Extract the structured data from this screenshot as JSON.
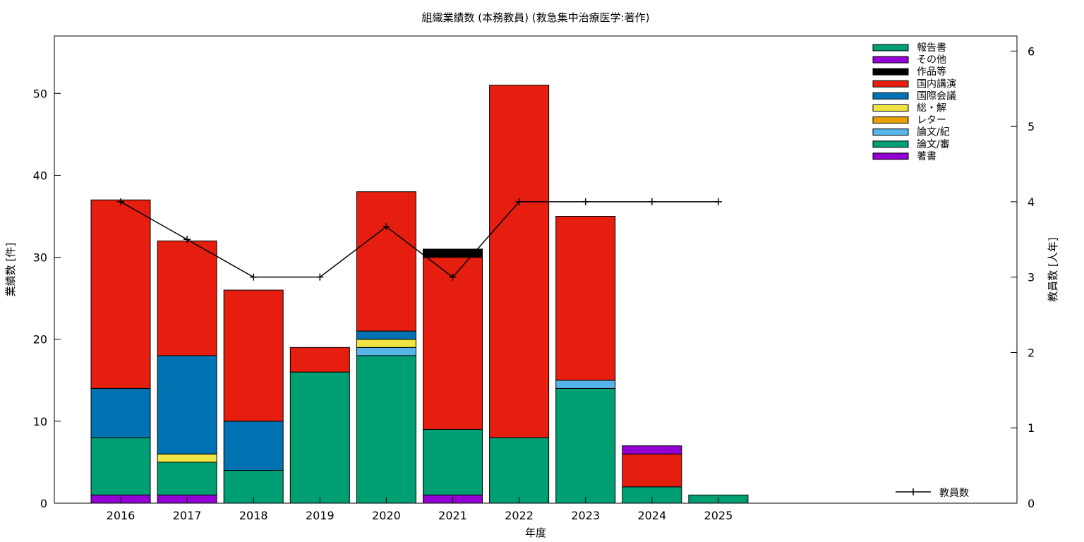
{
  "chart_data": {
    "type": "bar",
    "title": "組織業績数 (本務教員) (救急集中治療医学:著作)",
    "xlabel": "年度",
    "ylabel": "業績数 [件]",
    "y2label": "教員数 [人年]",
    "ylim": [
      0,
      57
    ],
    "y2lim": [
      0,
      6.2
    ],
    "yticks": [
      0,
      10,
      20,
      30,
      40,
      50
    ],
    "y2ticks": [
      0,
      1,
      2,
      3,
      4,
      5,
      6
    ],
    "categories": [
      "2016",
      "2017",
      "2018",
      "2019",
      "2020",
      "2021",
      "2022",
      "2023",
      "2024",
      "2025"
    ],
    "legend_position": "top-right",
    "series": [
      {
        "name": "著書",
        "color": "#9400d3",
        "values": [
          1,
          1,
          0,
          0,
          0,
          1,
          0,
          0,
          0,
          0
        ]
      },
      {
        "name": "論文/審",
        "color": "#009e73",
        "values": [
          7,
          4,
          4,
          16,
          18,
          8,
          8,
          14,
          2,
          1
        ]
      },
      {
        "name": "論文/紀",
        "color": "#56b4e9",
        "values": [
          0,
          0,
          0,
          0,
          1,
          0,
          0,
          1,
          0,
          0
        ]
      },
      {
        "name": "レター",
        "color": "#e69f00",
        "values": [
          0,
          0,
          0,
          0,
          0,
          0,
          0,
          0,
          0,
          0
        ]
      },
      {
        "name": "総・解",
        "color": "#f0e442",
        "values": [
          0,
          1,
          0,
          0,
          1,
          0,
          0,
          0,
          0,
          0
        ]
      },
      {
        "name": "国際会議",
        "color": "#0072b2",
        "values": [
          6,
          12,
          6,
          0,
          1,
          0,
          0,
          0,
          0,
          0
        ]
      },
      {
        "name": "国内講演",
        "color": "#e51e10",
        "values": [
          23,
          14,
          16,
          3,
          17,
          21,
          43,
          20,
          4,
          0
        ]
      },
      {
        "name": "作品等",
        "color": "#000000",
        "values": [
          0,
          0,
          0,
          0,
          0,
          1,
          0,
          0,
          0,
          0
        ]
      },
      {
        "name": "その他",
        "color": "#9400d3",
        "values": [
          0,
          0,
          0,
          0,
          0,
          0,
          0,
          0,
          1,
          0
        ]
      },
      {
        "name": "報告書",
        "color": "#009e73",
        "values": [
          0,
          0,
          0,
          0,
          0,
          0,
          0,
          0,
          0,
          0
        ]
      }
    ],
    "line_series": {
      "name": "教員数",
      "color": "#000000",
      "values": [
        4,
        3.5,
        3,
        3,
        3.67,
        3,
        4,
        4,
        4,
        4
      ]
    }
  }
}
